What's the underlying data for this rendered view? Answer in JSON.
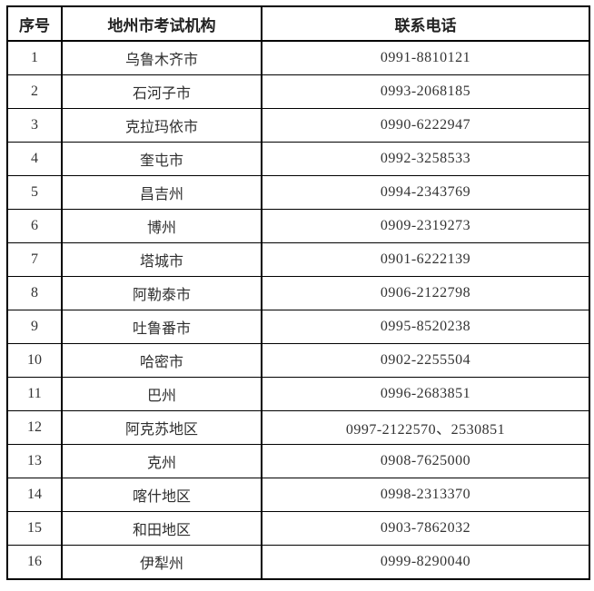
{
  "table": {
    "headers": {
      "no": "序号",
      "org": "地州市考试机构",
      "phone": "联系电话"
    },
    "rows": [
      {
        "no": "1",
        "org": "乌鲁木齐市",
        "phone": "0991-8810121"
      },
      {
        "no": "2",
        "org": "石河子市",
        "phone": "0993-2068185"
      },
      {
        "no": "3",
        "org": "克拉玛依市",
        "phone": "0990-6222947"
      },
      {
        "no": "4",
        "org": "奎屯市",
        "phone": "0992-3258533"
      },
      {
        "no": "5",
        "org": "昌吉州",
        "phone": "0994-2343769"
      },
      {
        "no": "6",
        "org": "博州",
        "phone": "0909-2319273"
      },
      {
        "no": "7",
        "org": "塔城市",
        "phone": "0901-6222139"
      },
      {
        "no": "8",
        "org": "阿勒泰市",
        "phone": "0906-2122798"
      },
      {
        "no": "9",
        "org": "吐鲁番市",
        "phone": "0995-8520238"
      },
      {
        "no": "10",
        "org": "哈密市",
        "phone": "0902-2255504"
      },
      {
        "no": "11",
        "org": "巴州",
        "phone": "0996-2683851"
      },
      {
        "no": "12",
        "org": "阿克苏地区",
        "phone": "0997-2122570、2530851"
      },
      {
        "no": "13",
        "org": "克州",
        "phone": "0908-7625000"
      },
      {
        "no": "14",
        "org": "喀什地区",
        "phone": "0998-2313370"
      },
      {
        "no": "15",
        "org": "和田地区",
        "phone": "0903-7862032"
      },
      {
        "no": "16",
        "org": "伊犁州",
        "phone": "0999-8290040"
      }
    ],
    "colors": {
      "border": "#000000",
      "text": "#2b2b2b",
      "background": "#ffffff"
    }
  }
}
